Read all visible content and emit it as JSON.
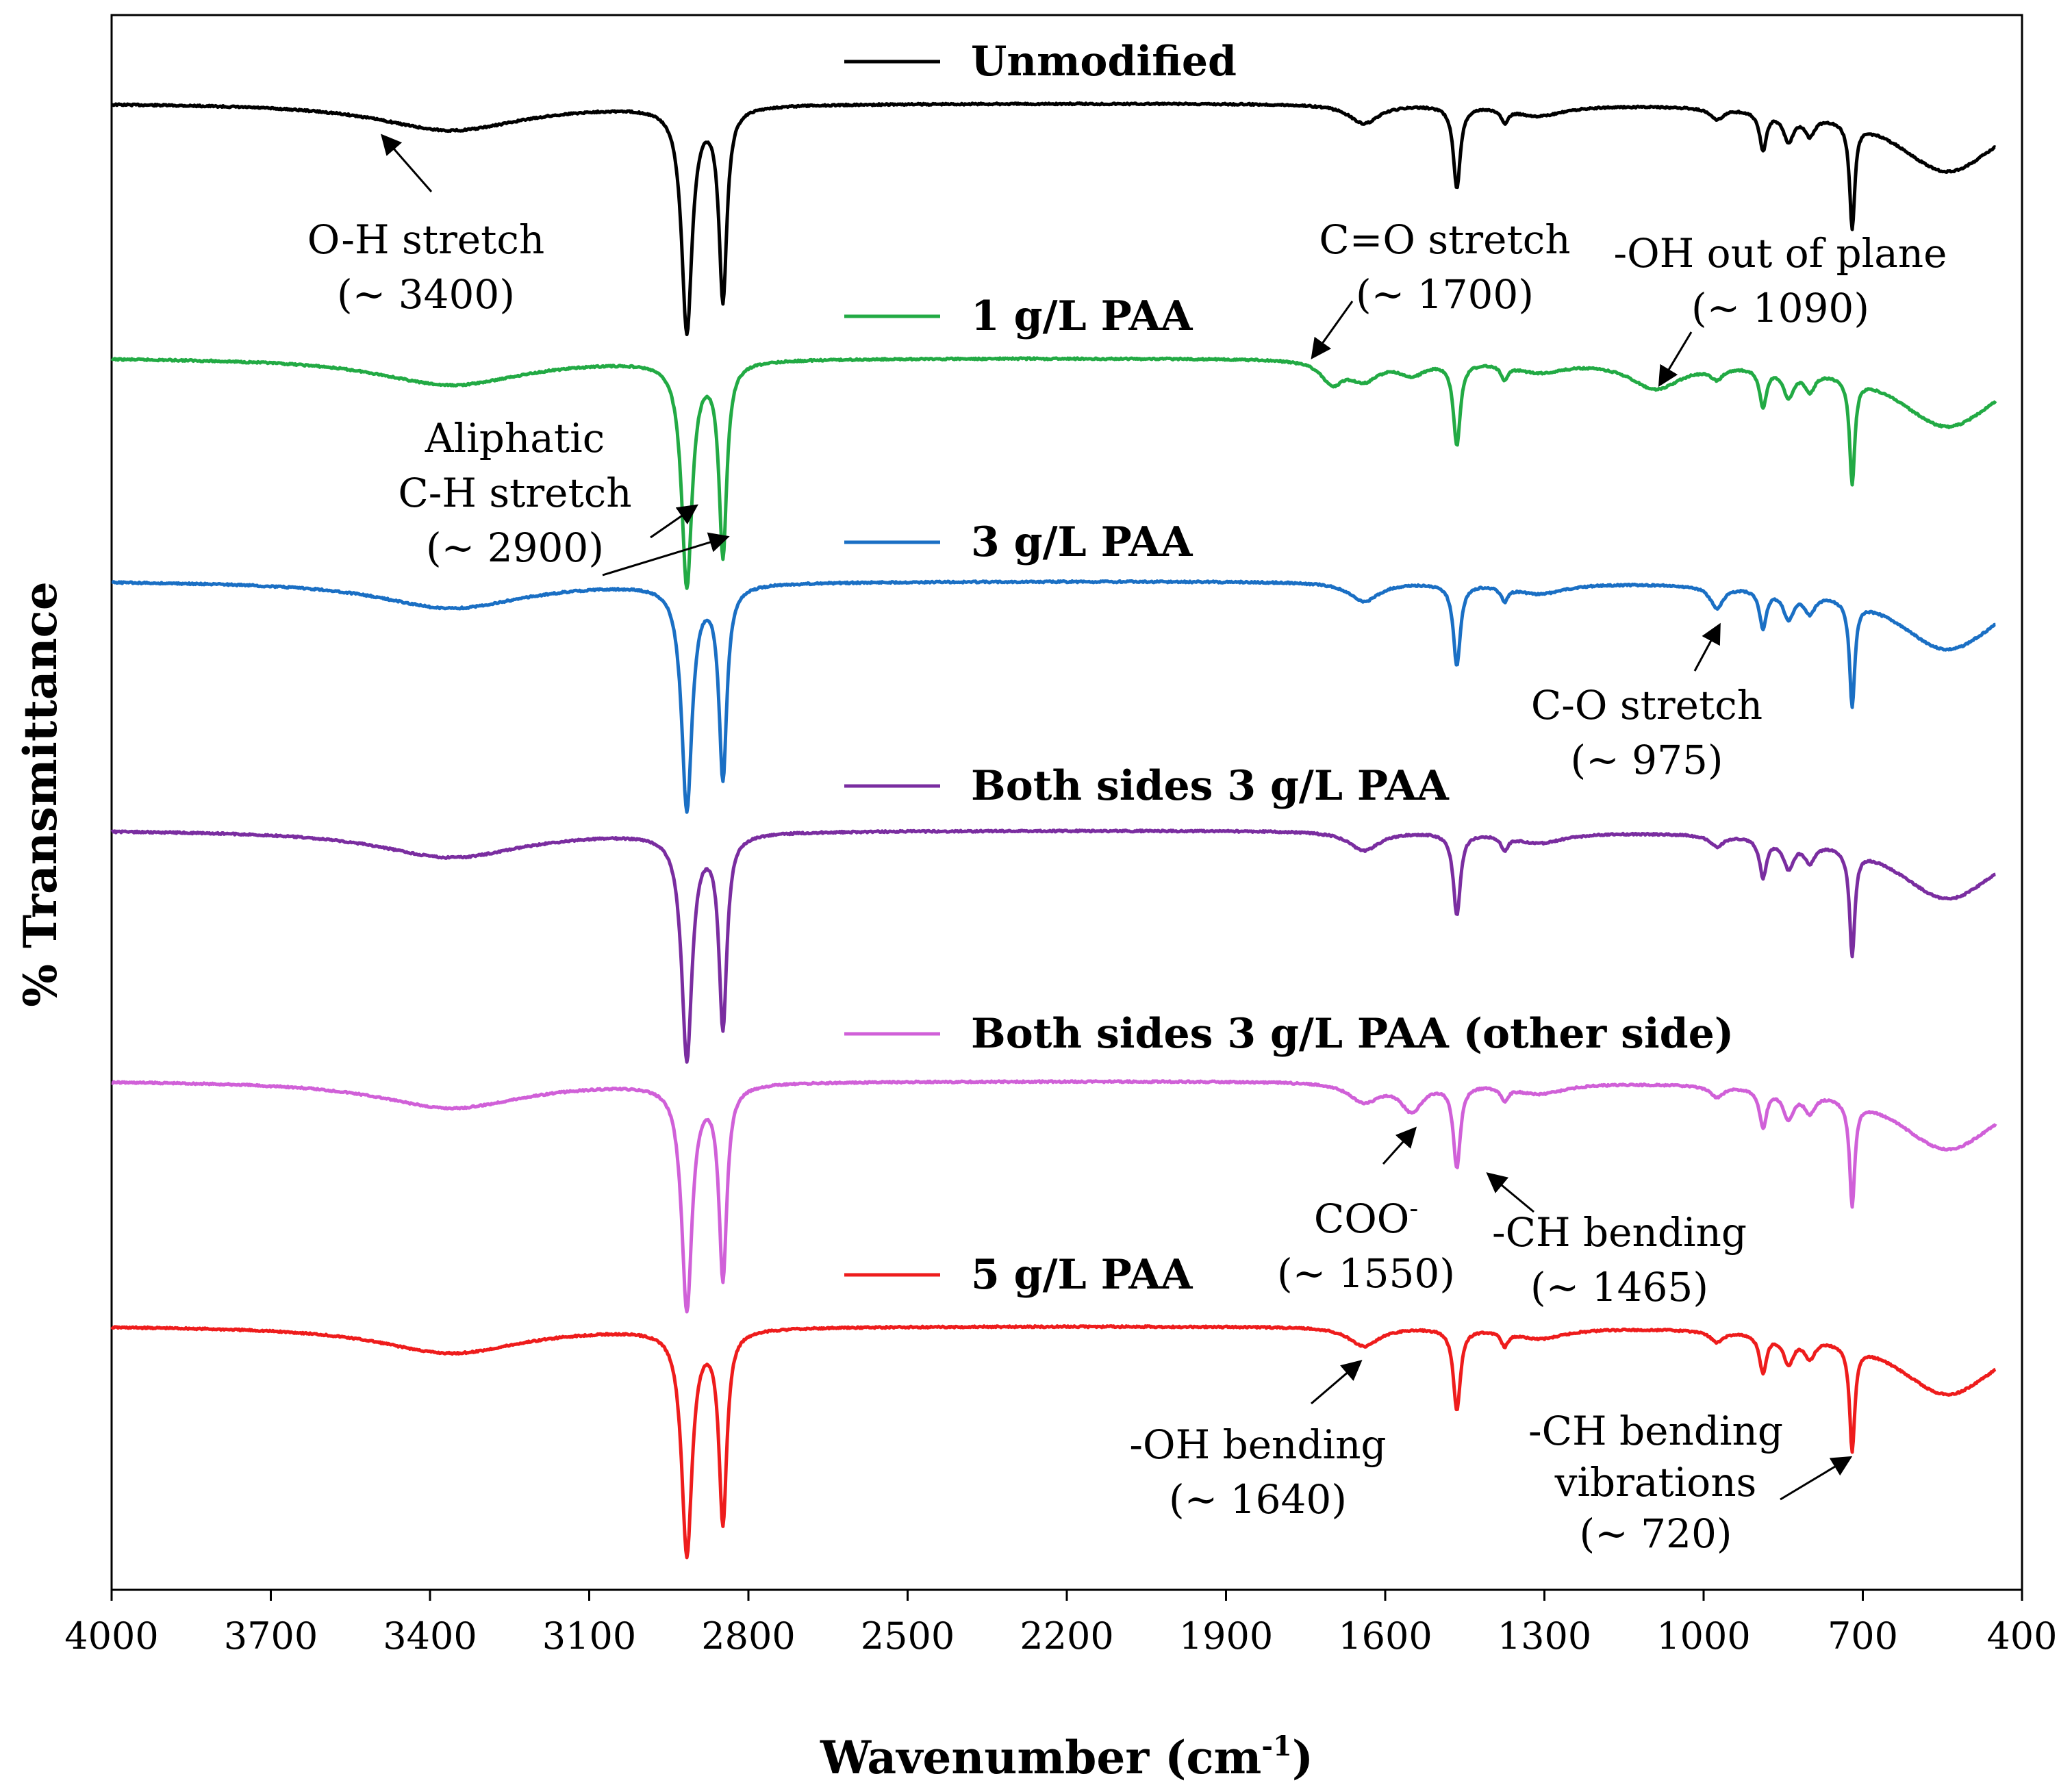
{
  "chart_data": {
    "type": "line",
    "title": "",
    "xlabel": "Wavenumber (cm",
    "xlabel_sup": "-1",
    "xlabel_close": ")",
    "ylabel": "% Transmittance",
    "xlim": [
      4000,
      400
    ],
    "x_reversed": true,
    "xticks": [
      "4000",
      "3700",
      "3400",
      "3100",
      "2800",
      "2500",
      "2200",
      "1900",
      "1600",
      "1300",
      "1000",
      "700",
      "400"
    ],
    "yticks": [],
    "grid": false,
    "legend_position": "inline above each trace",
    "baseline_peaks": [
      {
        "center": 3360,
        "depth": 0.1,
        "width": 170
      },
      {
        "center": 2916,
        "depth": 0.82,
        "width": 12
      },
      {
        "center": 2848,
        "depth": 0.7,
        "width": 9
      },
      {
        "center": 1640,
        "depth": 0.07,
        "width": 35
      },
      {
        "center": 1465,
        "depth": 0.3,
        "width": 8
      },
      {
        "center": 1375,
        "depth": 0.05,
        "width": 8
      },
      {
        "center": 1310,
        "depth": 0.04,
        "width": 60
      },
      {
        "center": 975,
        "depth": 0.04,
        "width": 15
      },
      {
        "center": 888,
        "depth": 0.14,
        "width": 8
      },
      {
        "center": 840,
        "depth": 0.1,
        "width": 12
      },
      {
        "center": 800,
        "depth": 0.07,
        "width": 12
      },
      {
        "center": 720,
        "depth": 0.38,
        "width": 6
      },
      {
        "center": 540,
        "depth": 0.25,
        "width": 120
      }
    ],
    "series": [
      {
        "name": "Unmodified",
        "color": "#000000",
        "offset": 0,
        "extra_peaks": []
      },
      {
        "name": "1 g/L PAA",
        "color": "#22aa44",
        "offset": 1,
        "extra_peaks": [
          {
            "center": 1700,
            "depth": 0.08,
            "width": 25
          },
          {
            "center": 1090,
            "depth": 0.1,
            "width": 60
          },
          {
            "center": 1550,
            "depth": 0.05,
            "width": 30
          }
        ]
      },
      {
        "name": "3 g/L PAA",
        "color": "#1a6fc4",
        "offset": 2,
        "extra_peaks": [
          {
            "center": 975,
            "depth": 0.04,
            "width": 15
          }
        ]
      },
      {
        "name": "Both sides 3 g/L PAA",
        "color": "#7a2da0",
        "offset": 3,
        "extra_peaks": []
      },
      {
        "name": "Both sides 3 g/L PAA (other side)",
        "color": "#d060d8",
        "offset": 4,
        "extra_peaks": [
          {
            "center": 1550,
            "depth": 0.1,
            "width": 25
          }
        ]
      },
      {
        "name": "5 g/L PAA",
        "color": "#ee1c1c",
        "offset": 5,
        "extra_peaks": []
      }
    ],
    "annotations": [
      {
        "lines": [
          "O-H stretch",
          "(~ 3400)"
        ],
        "target": 3400
      },
      {
        "lines": [
          "Aliphatic",
          "C-H stretch",
          "(~ 2900)"
        ],
        "target": 2900
      },
      {
        "lines": [
          "C=O stretch",
          "(~ 1700)"
        ],
        "target": 1700
      },
      {
        "lines": [
          "-OH out of plane",
          "(~ 1090)"
        ],
        "target": 1090
      },
      {
        "lines": [
          "C-O stretch",
          "(~ 975)"
        ],
        "target": 975
      },
      {
        "lines": [
          "COO",
          "(~ 1550)"
        ],
        "sup": "-",
        "target": 1550
      },
      {
        "lines": [
          "-CH bending",
          "(~ 1465)"
        ],
        "target": 1465
      },
      {
        "lines": [
          "-OH bending",
          "(~ 1640)"
        ],
        "target": 1640
      },
      {
        "lines": [
          "-CH bending",
          "vibrations",
          "(~ 720)"
        ],
        "target": 720
      }
    ]
  }
}
